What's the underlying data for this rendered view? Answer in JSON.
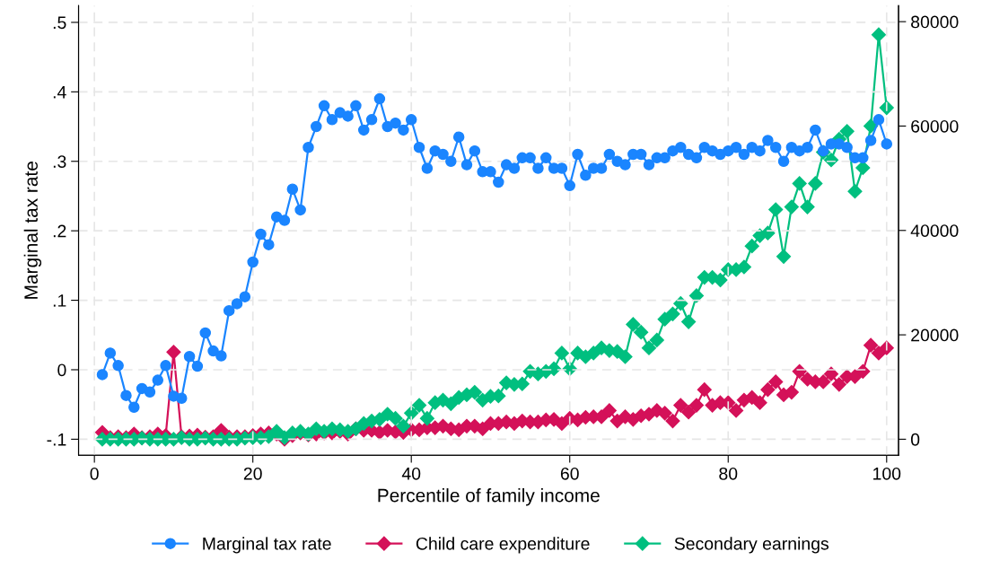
{
  "chart_data": {
    "type": "line",
    "xlabel": "Percentile of family income",
    "ylabel": "Marginal tax rate",
    "xlim": [
      -2,
      101.5
    ],
    "xticks": [
      0,
      20,
      40,
      60,
      80,
      100
    ],
    "ylim": [
      -0.123,
      0.524
    ],
    "yticks": [
      {
        "value": -0.1,
        "label": "-.1"
      },
      {
        "value": 0,
        "label": "0"
      },
      {
        "value": 0.1,
        "label": ".1"
      },
      {
        "value": 0.2,
        "label": ".2"
      },
      {
        "value": 0.3,
        "label": ".3"
      },
      {
        "value": 0.4,
        "label": ".4"
      },
      {
        "value": 0.5,
        "label": ".5"
      }
    ],
    "y2lim": [
      -3060,
      83060
    ],
    "y2ticks": [
      0,
      20000,
      40000,
      60000,
      80000
    ],
    "grid": true,
    "legend": "bottom",
    "line_style": "solid",
    "x": [
      1,
      2,
      3,
      4,
      5,
      6,
      7,
      8,
      9,
      10,
      11,
      12,
      13,
      14,
      15,
      16,
      17,
      18,
      19,
      20,
      21,
      22,
      23,
      24,
      25,
      26,
      27,
      28,
      29,
      30,
      31,
      32,
      33,
      34,
      35,
      36,
      37,
      38,
      39,
      40,
      41,
      42,
      43,
      44,
      45,
      46,
      47,
      48,
      49,
      50,
      51,
      52,
      53,
      54,
      55,
      56,
      57,
      58,
      59,
      60,
      61,
      62,
      63,
      64,
      65,
      66,
      67,
      68,
      69,
      70,
      71,
      72,
      73,
      74,
      75,
      76,
      77,
      78,
      79,
      80,
      81,
      82,
      83,
      84,
      85,
      86,
      87,
      88,
      89,
      90,
      91,
      92,
      93,
      94,
      95,
      96,
      97,
      98,
      99,
      100
    ],
    "series": [
      {
        "name": "Marginal tax rate",
        "color": "#1a85ff",
        "marker": "circle",
        "values": [
          -0.007,
          0.024,
          0.006,
          -0.037,
          -0.054,
          -0.027,
          -0.032,
          -0.015,
          0.006,
          -0.038,
          -0.041,
          0.019,
          0.005,
          0.053,
          0.027,
          0.02,
          0.085,
          0.095,
          0.105,
          0.155,
          0.195,
          0.18,
          0.22,
          0.215,
          0.26,
          0.23,
          0.32,
          0.35,
          0.38,
          0.36,
          0.37,
          0.365,
          0.38,
          0.345,
          0.36,
          0.39,
          0.35,
          0.355,
          0.345,
          0.36,
          0.32,
          0.29,
          0.315,
          0.31,
          0.3,
          0.335,
          0.295,
          0.315,
          0.285,
          0.285,
          0.27,
          0.295,
          0.29,
          0.305,
          0.305,
          0.29,
          0.305,
          0.29,
          0.29,
          0.265,
          0.31,
          0.28,
          0.29,
          0.29,
          0.31,
          0.3,
          0.295,
          0.31,
          0.31,
          0.295,
          0.305,
          0.305,
          0.315,
          0.32,
          0.31,
          0.305,
          0.32,
          0.315,
          0.31,
          0.315,
          0.32,
          0.31,
          0.32,
          0.315,
          0.33,
          0.32,
          0.3,
          0.32,
          0.315,
          0.32,
          0.345,
          0.315,
          0.325,
          0.325,
          0.32,
          0.305,
          0.305,
          0.33,
          0.36,
          0.325
        ]
      },
      {
        "name": "Child care expenditure",
        "color": "#d41159",
        "marker": "diamond",
        "axis": "y2",
        "values": [
          1300,
          300,
          500,
          300,
          1000,
          300,
          500,
          1000,
          700,
          16700,
          500,
          600,
          800,
          400,
          500,
          1700,
          400,
          500,
          500,
          700,
          1000,
          1200,
          1000,
          0,
          700,
          1200,
          800,
          1000,
          1200,
          1200,
          1500,
          1000,
          2000,
          1700,
          1700,
          1300,
          1700,
          1400,
          1300,
          1800,
          1800,
          2200,
          2200,
          2500,
          2000,
          1800,
          2500,
          2500,
          2000,
          3000,
          3000,
          3300,
          3000,
          3500,
          3300,
          3300,
          3700,
          3800,
          3000,
          4000,
          3700,
          4200,
          4300,
          4300,
          5500,
          3500,
          4300,
          3800,
          4500,
          4800,
          5500,
          5000,
          3500,
          6500,
          5200,
          6500,
          9500,
          6500,
          7000,
          7000,
          5500,
          7500,
          8000,
          7000,
          9500,
          11000,
          8500,
          9000,
          13000,
          11500,
          11000,
          11000,
          12500,
          10500,
          12000,
          12000,
          13000,
          18000,
          16500,
          17500
        ]
      },
      {
        "name": "Secondary earnings",
        "color": "#00bf7f",
        "marker": "diamond",
        "axis": "y2",
        "values": [
          0,
          0,
          0,
          0,
          0,
          200,
          0,
          0,
          0,
          0,
          300,
          0,
          0,
          200,
          0,
          0,
          0,
          0,
          200,
          300,
          300,
          500,
          1500,
          300,
          1200,
          1500,
          1000,
          2000,
          1500,
          2000,
          1800,
          1500,
          2000,
          3000,
          3500,
          3800,
          4800,
          4000,
          2500,
          5000,
          6500,
          4000,
          7000,
          7500,
          6800,
          8000,
          8500,
          9000,
          7500,
          8200,
          8300,
          10800,
          10500,
          10600,
          13000,
          12500,
          13000,
          13500,
          16500,
          13500,
          16500,
          15800,
          16500,
          17500,
          17000,
          16800,
          15800,
          22000,
          20500,
          17500,
          19000,
          23000,
          24000,
          26000,
          22500,
          27500,
          31000,
          31000,
          30500,
          32500,
          32500,
          33000,
          37000,
          39000,
          39500,
          44000,
          35000,
          44500,
          49000,
          44500,
          49000,
          55000,
          53500,
          57500,
          59000,
          47500,
          52000,
          60000,
          77500,
          63500
        ]
      }
    ]
  }
}
